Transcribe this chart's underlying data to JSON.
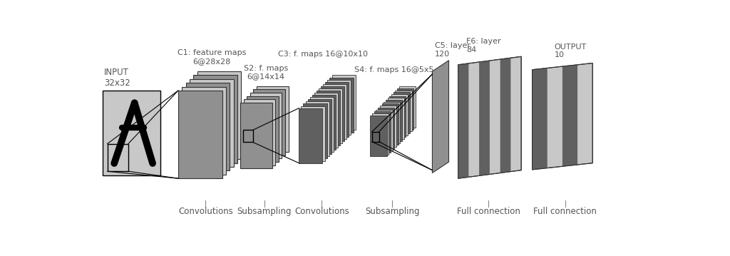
{
  "bg_color": "#ffffff",
  "input_label": "INPUT\n32x32",
  "c1_label": "C1: feature maps\n6@28x28",
  "s2_label": "S2: f. maps\n6@14x14",
  "c3_label": "C3: f. maps 16@10x10",
  "s4_label": "S4: f. maps 16@5x5",
  "c5_label": "C5: layer\n120",
  "f6_label": "F6: layer\n84",
  "output_label": "OUTPUT\n10",
  "conv1_label": "Convolutions",
  "sub1_label": "Subsampling",
  "conv2_label": "Convolutions",
  "sub2_label": "Subsampling",
  "full1_label": "Full connection",
  "full2_label": "Full connection",
  "light_gray": "#c8c8c8",
  "mid_gray": "#909090",
  "dark_gray": "#606060",
  "text_color": "#555555",
  "black": "#000000",
  "white": "#ffffff",
  "edge_color": "#333333"
}
